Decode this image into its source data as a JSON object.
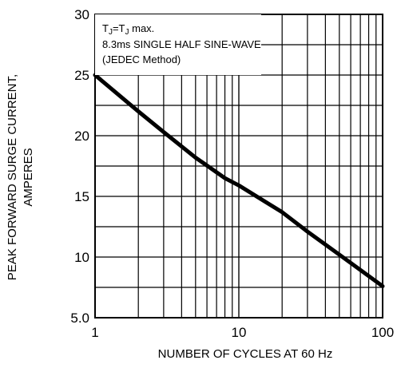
{
  "chart_data": {
    "type": "line",
    "title": "",
    "xlabel": "NUMBER OF CYCLES AT 60 Hz",
    "ylabel_lines": [
      "PEAK FORWARD SURGE CURRENT,",
      "AMPERES"
    ],
    "x_scale": "log",
    "xlim": [
      1,
      100
    ],
    "ylim": [
      5,
      30
    ],
    "x_ticks": [
      1,
      10,
      100
    ],
    "x_tick_labels": [
      "1",
      "10",
      "100"
    ],
    "y_ticks": [
      5,
      10,
      15,
      20,
      25,
      30
    ],
    "y_tick_labels": [
      "5.0",
      "10",
      "15",
      "20",
      "25",
      "30"
    ],
    "grid": true,
    "annotation": {
      "line1": {
        "prefix": "T",
        "sub1": "J",
        "mid": "=T",
        "sub2": "J",
        "suffix": " max."
      },
      "line2": "8.3ms SINGLE HALF SINE-WAVE",
      "line3": "(JEDEC Method)"
    },
    "series": [
      {
        "x": [
          1,
          2,
          3,
          5,
          8,
          10,
          20,
          30,
          50,
          100
        ],
        "y": [
          25,
          22,
          20.3,
          18.2,
          16.5,
          15.9,
          13.7,
          12.1,
          10.2,
          7.6
        ]
      }
    ]
  }
}
